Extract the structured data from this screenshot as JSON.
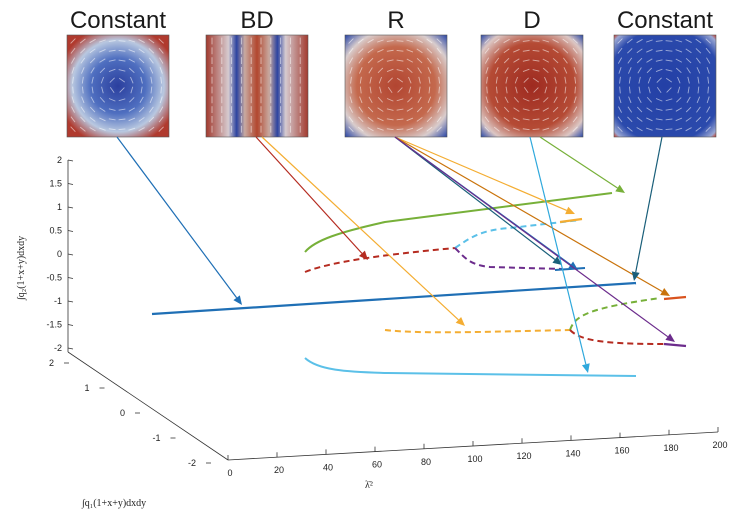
{
  "panels": [
    {
      "id": "p1",
      "title": "Constant",
      "pattern": "constant",
      "bg": "#8a3b30"
    },
    {
      "id": "p2",
      "title": "BD",
      "pattern": "bd",
      "bg": "#a8473a"
    },
    {
      "id": "p3",
      "title": "R",
      "pattern": "r",
      "bg": "#b04a3c"
    },
    {
      "id": "p4",
      "title": "D",
      "pattern": "d",
      "bg": "#b4483a"
    },
    {
      "id": "p5",
      "title": "Constant",
      "pattern": "constant2",
      "bg": "#2c48a8"
    }
  ],
  "axes": {
    "ylabel": "∫q₂(1+x+y)dxdy",
    "xlabel_depth": "∫q₁(1+x+y)dxdy",
    "xlabel": "λ̄²",
    "yticks": [
      "2",
      "1.5",
      "1",
      "0.5",
      "0",
      "-0.5",
      "-1",
      "-1.5",
      "-2"
    ],
    "depth_ticks": [
      "2",
      "1",
      "0",
      "-1",
      "-2"
    ],
    "xticks": [
      "0",
      "20",
      "40",
      "60",
      "80",
      "100",
      "120",
      "140",
      "160",
      "180",
      "200"
    ]
  },
  "colors": {
    "blue_dark": "#1f6fb5",
    "green": "#77b039",
    "red": "#b52b20",
    "orange": "#f4ad32",
    "purple": "#6c2c8c",
    "cyan": "#5bc0e8",
    "lightblue": "#2fa8dc",
    "darkorange": "#c9730b",
    "teal": "#1a5f7a"
  }
}
